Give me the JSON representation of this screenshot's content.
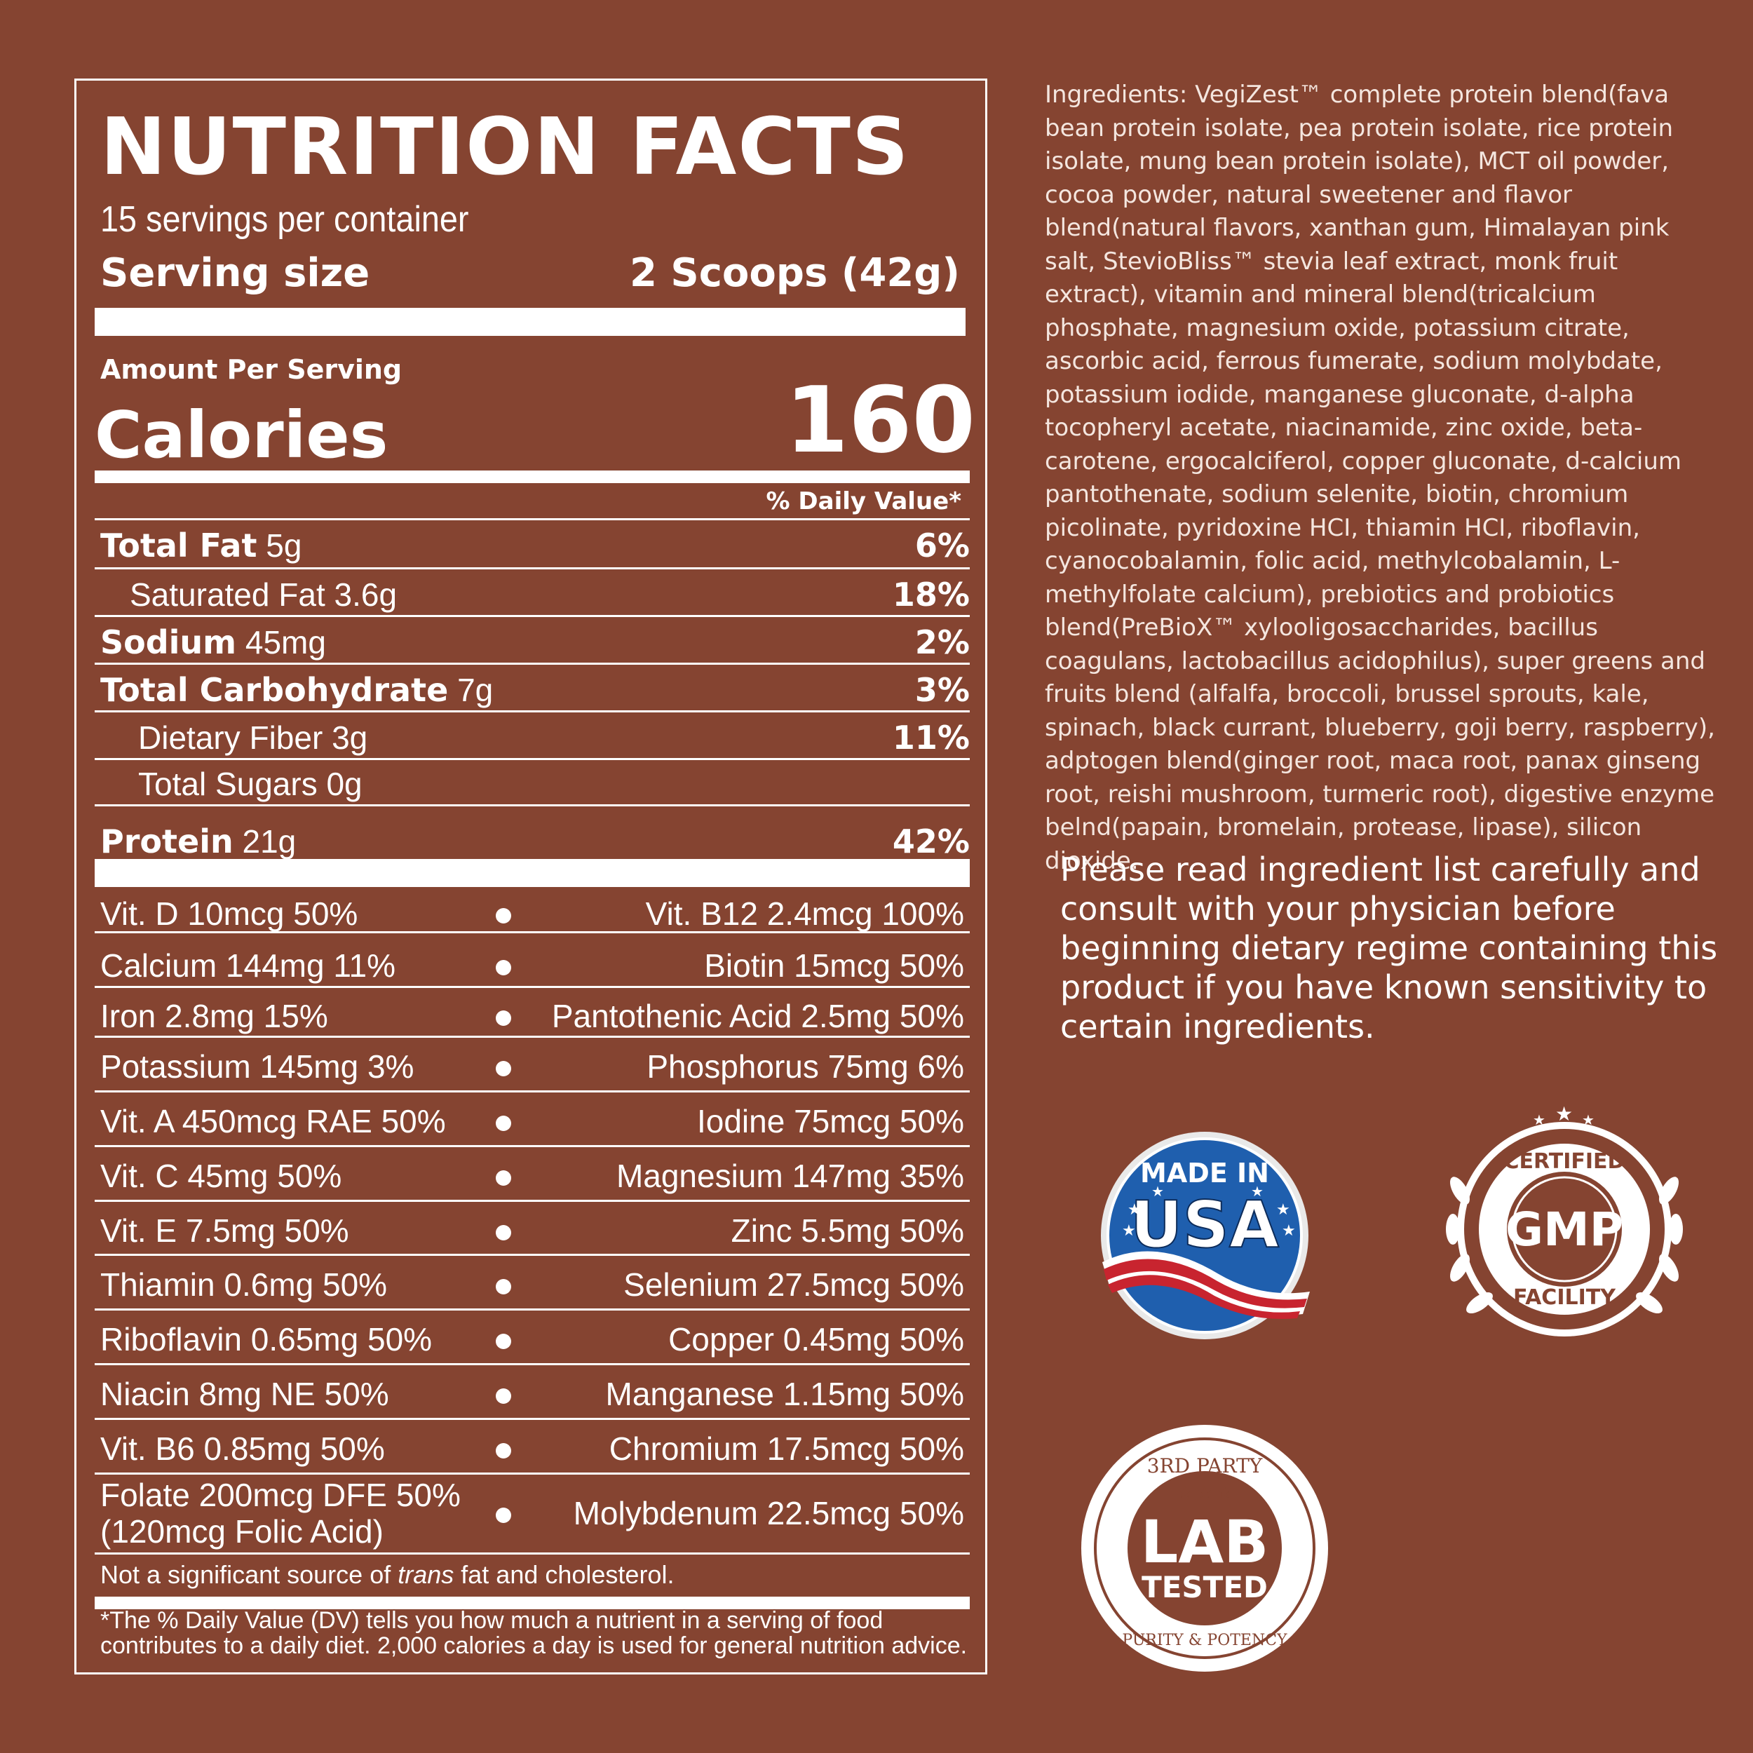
{
  "panel": {
    "title": "NUTRITION FACTS",
    "servings_per_container": "15 servings per container",
    "serving_size_label": "Serving size",
    "serving_size_value": "2 Scoops (42g)",
    "amount_per_serving": "Amount Per Serving",
    "calories_label": "Calories",
    "calories_value": "160",
    "daily_value_header": "% Daily Value*",
    "nutrients": [
      {
        "name": "Total Fat",
        "amount": "5g",
        "pct": "6%"
      },
      {
        "name": "Saturated Fat 3.6g",
        "amount": "",
        "pct": "18%"
      },
      {
        "name": "Sodium",
        "amount": "45mg",
        "pct": "2%"
      },
      {
        "name": "Total Carbohydrate",
        "amount": "7g",
        "pct": "3%"
      },
      {
        "name": "Dietary Fiber 3g",
        "amount": "",
        "pct": "11%"
      },
      {
        "name": "Total Sugars 0g",
        "amount": "",
        "pct": ""
      },
      {
        "name": "Protein",
        "amount": "21g",
        "pct": "42%"
      }
    ],
    "vitamins": [
      {
        "left": "Vit. D 10mcg 50%",
        "right": "Vit. B12 2.4mcg 100%"
      },
      {
        "left": "Calcium 144mg 11%",
        "right": "Biotin 15mcg 50%"
      },
      {
        "left": "Iron 2.8mg 15%",
        "right": "Pantothenic Acid 2.5mg 50%"
      },
      {
        "left": "Potassium 145mg 3%",
        "right": "Phosphorus 75mg 6%"
      },
      {
        "left": "Vit. A 450mcg RAE 50%",
        "right": "Iodine 75mcg 50%"
      },
      {
        "left": "Vit. C 45mg 50%",
        "right": "Magnesium 147mg 35%"
      },
      {
        "left": "Vit. E 7.5mg 50%",
        "right": "Zinc 5.5mg 50%"
      },
      {
        "left": "Thiamin 0.6mg 50%",
        "right": "Selenium 27.5mcg 50%"
      },
      {
        "left": "Riboflavin 0.65mg 50%",
        "right": "Copper 0.45mg 50%"
      },
      {
        "left": "Niacin 8mg NE 50%",
        "right": "Manganese 1.15mg 50%"
      },
      {
        "left": "Vit. B6 0.85mg 50%",
        "right": "Chromium 17.5mcg 50%"
      },
      {
        "left": "Folate 200mcg DFE 50%",
        "left2": "(120mcg Folic Acid)",
        "right": "Molybdenum 22.5mcg 50%"
      }
    ],
    "not_significant_prefix": "Not a significant source of ",
    "not_significant_italic": "trans",
    "not_significant_suffix": " fat and cholesterol.",
    "dv_footnote": "*The % Daily Value (DV) tells you how much a nutrient in a serving of food contributes to a daily diet. 2,000 calories a day is used for general nutrition advice."
  },
  "ingredients": "Ingredients: VegiZest™ complete protein blend(fava bean protein isolate, pea protein isolate, rice protein isolate, mung bean protein isolate), MCT oil powder, cocoa powder, natural sweetener and flavor blend(natural flavors, xanthan gum, Himalayan pink salt, StevioBliss™ stevia leaf extract, monk fruit extract), vitamin and mineral blend(tricalcium phosphate, magnesium oxide, potassium citrate, ascorbic acid, ferrous fumerate, sodium molybdate, potassium iodide, manganese gluconate, d-alpha tocopheryl acetate, niacinamide, zinc oxide, beta-carotene, ergocalciferol, copper gluconate, d-calcium pantothenate, sodium selenite, biotin, chromium picolinate, pyridoxine HCI, thiamin HCI, riboflavin, cyanocobalamin, folic acid, methylcobalamin, L-methylfolate calcium), prebiotics and probiotics blend(PreBioX™ xylooligosaccharides, bacillus coagulans, lactobacillus acidophilus), super greens and fruits blend (alfalfa, broccoli, brussel sprouts, kale, spinach, black currant, blueberry, goji berry, raspberry), adptogen blend(ginger root, maca root, panax ginseng root, reishi mushroom, turmeric root), digestive enzyme belnd(papain, bromelain, protease, lipase), silicon dioxide.",
  "notice": "Please read ingredient list carefully and consult with your physician before beginning dietary regime containing this product if you have known sensitivity to certain ingredients.",
  "badges": {
    "usa": {
      "top": "MADE IN",
      "main": "USA"
    },
    "gmp": {
      "top": "CERTIFIED",
      "main": "GMP",
      "bottom": "FACILITY"
    },
    "lab": {
      "top": "3RD PARTY",
      "main1": "LAB",
      "main2": "TESTED",
      "bottom": "PURITY & POTENCY"
    }
  },
  "colors": {
    "background": "#854431",
    "text": "#ffffff",
    "usa_blue": "#1f5fae",
    "usa_red": "#c8242f"
  }
}
